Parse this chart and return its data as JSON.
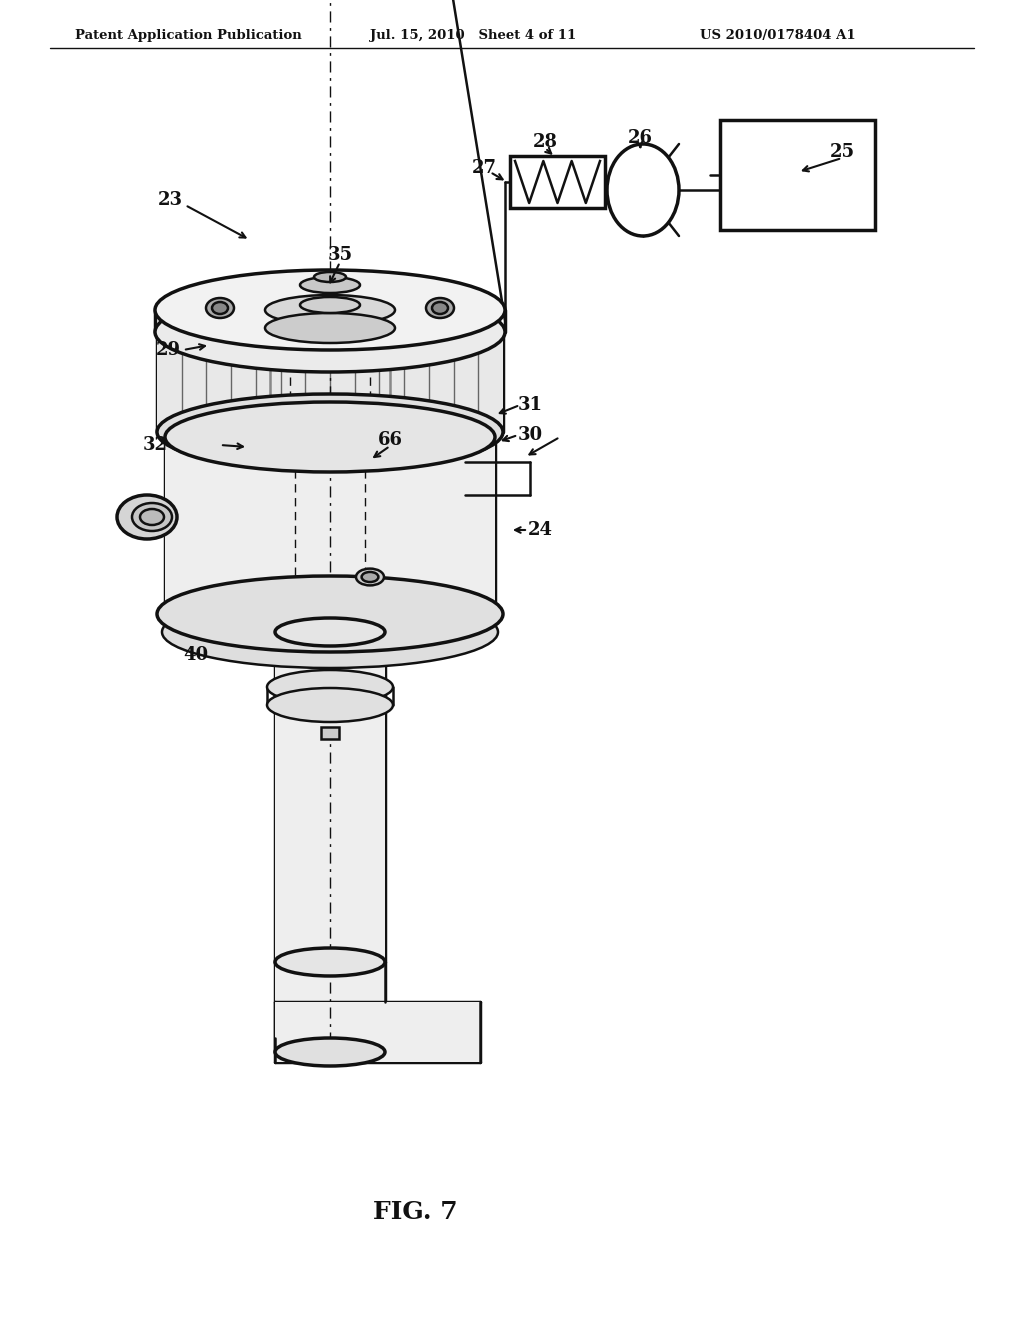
{
  "header_left": "Patent Application Publication",
  "header_mid": "Jul. 15, 2010   Sheet 4 of 11",
  "header_right": "US 2010/0178404 A1",
  "fig_label": "FIG. 7",
  "bg_color": "#ffffff",
  "line_color": "#111111"
}
